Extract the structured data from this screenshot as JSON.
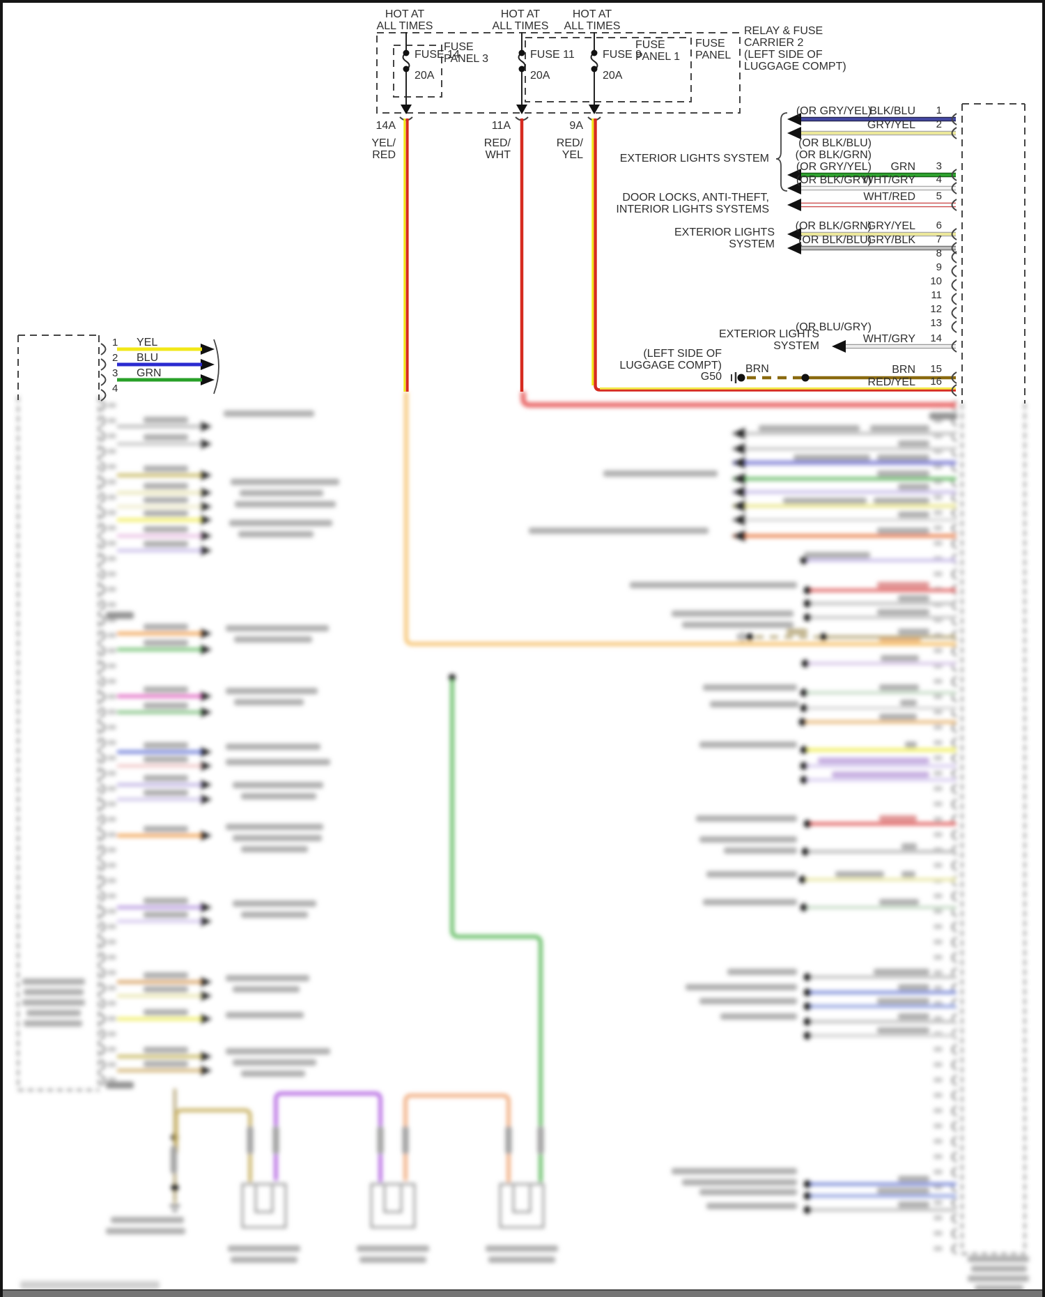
{
  "fuse_box": {
    "hot_at": "HOT AT",
    "all_times": "ALL TIMES",
    "relay_carrier": [
      "RELAY & FUSE",
      "CARRIER 2",
      "(LEFT SIDE OF",
      "LUGGAGE COMPT)"
    ],
    "panels": {
      "p3": [
        "FUSE",
        "PANEL 3"
      ],
      "p1": [
        "FUSE",
        "PANEL 1"
      ],
      "p": [
        "FUSE",
        "PANEL"
      ]
    },
    "fuses": [
      {
        "name": "FUSE 14",
        "rating": "20A"
      },
      {
        "name": "FUSE 11",
        "rating": "20A"
      },
      {
        "name": "FUSE 9",
        "rating": "20A"
      }
    ]
  },
  "feeds": [
    {
      "amps": "14A",
      "color": [
        "YEL/",
        "RED"
      ]
    },
    {
      "amps": "11A",
      "color": [
        "RED/",
        "WHT"
      ]
    },
    {
      "amps": "9A",
      "color": [
        "RED/",
        "YEL"
      ]
    }
  ],
  "left_connector": {
    "pins": [
      {
        "num": "1",
        "color": "YEL"
      },
      {
        "num": "2",
        "color": "BLU"
      },
      {
        "num": "3",
        "color": "GRN"
      },
      {
        "num": "4",
        "color": ""
      }
    ]
  },
  "right_connector": {
    "pins": [
      {
        "num": "1",
        "alt": "(OR GRY/YEL)",
        "color": "BLK/BLU"
      },
      {
        "num": "2",
        "color": "GRY/YEL"
      },
      {
        "num": "3",
        "alt_lines": [
          "(OR BLK/BLU)",
          "(OR BLK/GRN)",
          "(OR GRY/YEL)"
        ],
        "color": "GRN"
      },
      {
        "num": "4",
        "alt": "(OR BLK/GRY)",
        "color": "WHT/GRY"
      },
      {
        "num": "5",
        "color": "WHT/RED"
      },
      {
        "num": "6",
        "alt": "(OR BLK/GRN)",
        "color": "GRY/YEL"
      },
      {
        "num": "7",
        "alt": "(OR BLK/BLU)",
        "color": "GRY/BLK"
      },
      {
        "num": "8"
      },
      {
        "num": "9"
      },
      {
        "num": "10"
      },
      {
        "num": "11"
      },
      {
        "num": "12"
      },
      {
        "num": "13"
      },
      {
        "num": "14",
        "alt": "(OR BLU/GRY)",
        "color": "WHT/GRY"
      },
      {
        "num": "15",
        "color": "BRN"
      },
      {
        "num": "16",
        "color": "RED/YEL"
      }
    ]
  },
  "systems": {
    "exterior_lights_1": "EXTERIOR LIGHTS SYSTEM",
    "door_locks": [
      "DOOR LOCKS, ANTI-THEFT,",
      "INTERIOR LIGHTS SYSTEMS"
    ],
    "exterior_lights_2": [
      "EXTERIOR LIGHTS",
      "SYSTEM"
    ],
    "exterior_lights_3": [
      "EXTERIOR LIGHTS",
      "SYSTEM"
    ]
  },
  "ground": {
    "location": [
      "(LEFT SIDE OF",
      "LUGGAGE COMPT)"
    ],
    "name": "G50",
    "wire": "BRN"
  },
  "colors": {
    "feed_red": "#d62b20",
    "feed_yellow": "#f2e818",
    "brown": "#8a6a10",
    "green_wire": "#2ea12e",
    "navy_wire": "#4347a0"
  }
}
